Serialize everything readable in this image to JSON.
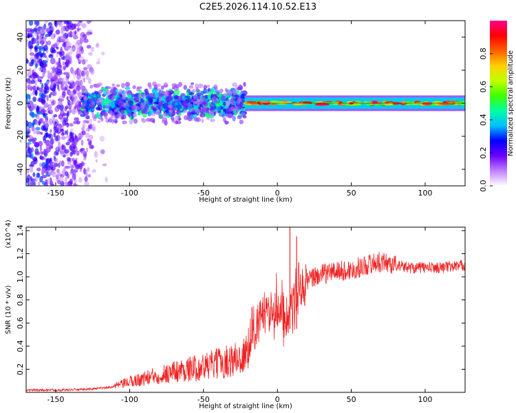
{
  "figure_title": "C2E5.2026.114.10.52.E13",
  "chart_data": [
    {
      "type": "heatmap",
      "xlabel": "Height of straight line (km)",
      "ylabel": "Frequency (Hz)",
      "xlim": [
        -170,
        127
      ],
      "ylim": [
        -50,
        50
      ],
      "xticks": [
        -150,
        -100,
        -50,
        0,
        50,
        100
      ],
      "yticks": [
        -40,
        -20,
        0,
        20,
        40
      ],
      "colorbar": {
        "label": "Normalized spectral amplitude",
        "range": [
          0,
          1
        ],
        "ticks": [
          0.0,
          0.2,
          0.4,
          0.6,
          0.8
        ],
        "colors": [
          "#ffffff",
          "#c080ff",
          "#6a00ff",
          "#0000ff",
          "#00c0ff",
          "#00ffa0",
          "#40ff00",
          "#c0ff00",
          "#ffd000",
          "#ff6000",
          "#ff0000",
          "#ff0090"
        ]
      },
      "regions": [
        {
          "name": "broadband noise",
          "x": [
            -170,
            -115
          ],
          "freq_range": [
            -50,
            50
          ],
          "amplitude": [
            0.05,
            0.3
          ]
        },
        {
          "name": "noisy band",
          "x": [
            -132,
            -22
          ],
          "freq_range": [
            -8,
            8
          ],
          "amplitude": [
            0.2,
            0.5
          ]
        },
        {
          "name": "narrow carrier",
          "x": [
            -22,
            127
          ],
          "freq_range": [
            -2,
            2
          ],
          "amplitude": [
            0.3,
            1.0
          ]
        }
      ]
    },
    {
      "type": "line",
      "xlabel": "Height of straight line (km)",
      "ylabel": "SNR (10 * v/v)",
      "y_multiplier": "(x10^4)",
      "xlim": [
        -170,
        127
      ],
      "ylim": [
        0,
        1.43
      ],
      "xticks": [
        -150,
        -100,
        -50,
        0,
        50,
        100
      ],
      "yticks": [
        0.2,
        0.4,
        0.6,
        0.8,
        1.0,
        1.2,
        1.4
      ],
      "color": "#ee2222",
      "series": [
        {
          "name": "SNR",
          "x": [
            -170,
            -150,
            -130,
            -115,
            -105,
            -100,
            -90,
            -80,
            -70,
            -60,
            -50,
            -40,
            -30,
            -25,
            -22,
            -20,
            -17,
            -15,
            -12,
            -10,
            -7,
            -5,
            -2,
            0,
            3,
            5,
            8,
            10,
            12,
            15,
            18,
            20,
            25,
            30,
            35,
            40,
            45,
            50,
            55,
            60,
            65,
            70,
            75,
            80,
            90,
            100,
            110,
            127
          ],
          "values": [
            0.02,
            0.02,
            0.025,
            0.04,
            0.07,
            0.09,
            0.12,
            0.15,
            0.18,
            0.2,
            0.22,
            0.25,
            0.28,
            0.3,
            0.32,
            0.35,
            0.6,
            0.55,
            0.62,
            0.65,
            0.68,
            0.7,
            0.72,
            0.75,
            0.7,
            0.65,
            0.7,
            0.75,
            0.8,
            0.85,
            0.9,
            0.95,
            1.0,
            1.02,
            1.04,
            1.05,
            1.05,
            1.06,
            1.08,
            1.1,
            1.12,
            1.13,
            1.12,
            1.1,
            1.08,
            1.08,
            1.08,
            1.1
          ]
        }
      ],
      "spikes": [
        {
          "x": 8.5,
          "value": 1.43
        },
        {
          "x": 13,
          "value": 1.35
        }
      ]
    }
  ]
}
